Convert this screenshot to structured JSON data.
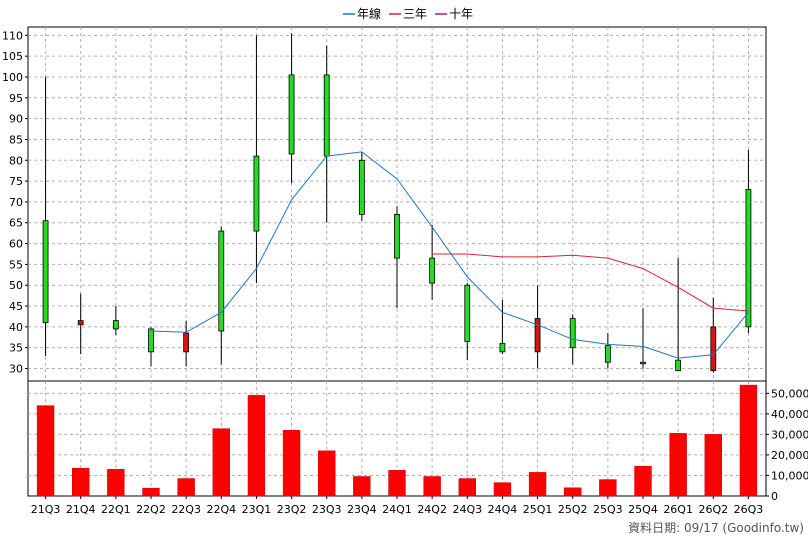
{
  "chart_data": {
    "type": "candlestick-with-volume",
    "legend": [
      {
        "name": "年線",
        "color": "#1f77d0"
      },
      {
        "name": "三年",
        "color": "#e0203a"
      },
      {
        "name": "十年",
        "color": "#a0206a"
      }
    ],
    "categories": [
      "21Q3",
      "21Q4",
      "22Q1",
      "22Q2",
      "22Q3",
      "22Q4",
      "23Q1",
      "23Q2",
      "23Q3",
      "23Q4",
      "24Q1",
      "24Q2",
      "24Q3",
      "24Q4",
      "25Q1",
      "25Q2",
      "25Q3",
      "25Q4",
      "26Q1",
      "26Q2",
      "26Q3"
    ],
    "x_tick_labels": [
      "21Q3",
      "21Q4",
      "22Q1",
      "22Q2",
      "22Q3",
      "22Q4",
      "23Q1",
      "23Q2",
      "23Q3",
      "23Q4",
      "24Q1",
      "24Q2",
      "24Q3",
      "24Q4",
      "25Q1",
      "25Q2",
      "25Q3",
      "25Q4",
      "26Q1",
      "26Q2",
      "26Q3"
    ],
    "price_axis": {
      "min": 27,
      "max": 112,
      "ticks": [
        30,
        35,
        40,
        45,
        50,
        55,
        60,
        65,
        70,
        75,
        80,
        85,
        90,
        95,
        100,
        105,
        110
      ],
      "position": "left"
    },
    "volume_axis": {
      "min": 0,
      "max": 56000,
      "ticks": [
        0,
        10000,
        20000,
        30000,
        40000,
        50000
      ],
      "tick_labels": [
        "0",
        "10,000",
        "20,000",
        "30,000",
        "40,000",
        "50,000"
      ],
      "position": "right"
    },
    "candles": [
      {
        "o": 41,
        "h": 100,
        "l": 33,
        "c": 65.5
      },
      {
        "o": 41.5,
        "h": 48,
        "l": 33.5,
        "c": 40.5
      },
      {
        "o": 39.5,
        "h": 45,
        "l": 38,
        "c": 41.5
      },
      {
        "o": 34,
        "h": 40,
        "l": 30.5,
        "c": 39.5
      },
      {
        "o": 38.5,
        "h": 41.5,
        "l": 30.5,
        "c": 34
      },
      {
        "o": 39,
        "h": 64,
        "l": 31,
        "c": 63
      },
      {
        "o": 63,
        "h": 110,
        "l": 50.5,
        "c": 81
      },
      {
        "o": 81.5,
        "h": 110.5,
        "l": 74.5,
        "c": 100.5
      },
      {
        "o": 81,
        "h": 107.5,
        "l": 65,
        "c": 100.5
      },
      {
        "o": 67,
        "h": 82,
        "l": 65.5,
        "c": 80
      },
      {
        "o": 56.5,
        "h": 69,
        "l": 44.5,
        "c": 67
      },
      {
        "o": 50.5,
        "h": 64.5,
        "l": 46.5,
        "c": 56.5
      },
      {
        "o": 36.5,
        "h": 50.5,
        "l": 32,
        "c": 50
      },
      {
        "o": 34,
        "h": 46.5,
        "l": 33.5,
        "c": 36
      },
      {
        "o": 42,
        "h": 50,
        "l": 30,
        "c": 34
      },
      {
        "o": 35,
        "h": 43,
        "l": 31,
        "c": 42
      },
      {
        "o": 31.5,
        "h": 38.5,
        "l": 30,
        "c": 35.5
      },
      {
        "o": 31.5,
        "h": 44.5,
        "l": 30,
        "c": 31.5
      },
      {
        "o": 29.5,
        "h": 56.5,
        "l": 29.5,
        "c": 32
      },
      {
        "o": 40,
        "h": 47,
        "l": 29,
        "c": 29.5
      },
      {
        "o": 40,
        "h": 82.5,
        "l": 38.5,
        "c": 73
      }
    ],
    "series": [
      {
        "name": "年線",
        "values": [
          null,
          null,
          null,
          39,
          38.7,
          43.5,
          54,
          70.5,
          81,
          82,
          75.5,
          64,
          52,
          43.5,
          40.5,
          37,
          35.8,
          35.3,
          32.5,
          33.3,
          43.5
        ]
      },
      {
        "name": "三年",
        "values": [
          null,
          null,
          null,
          null,
          null,
          null,
          null,
          null,
          null,
          null,
          null,
          57.5,
          57.5,
          56.8,
          56.8,
          57.2,
          56.5,
          54,
          49.5,
          44.5,
          43.8
        ]
      },
      {
        "name": "十年",
        "values": [
          null,
          null,
          null,
          null,
          null,
          null,
          null,
          null,
          null,
          null,
          null,
          null,
          null,
          null,
          null,
          null,
          null,
          null,
          null,
          null,
          null
        ]
      }
    ],
    "volume": [
      44000,
      13500,
      13000,
      3800,
      8500,
      32800,
      49000,
      32000,
      22000,
      9500,
      12500,
      9500,
      8500,
      6500,
      11500,
      4000,
      8000,
      14500,
      30500,
      30000,
      54000
    ],
    "grid": true
  },
  "footer": {
    "text": "資料日期: 09/17  (Goodinfo.tw)"
  }
}
